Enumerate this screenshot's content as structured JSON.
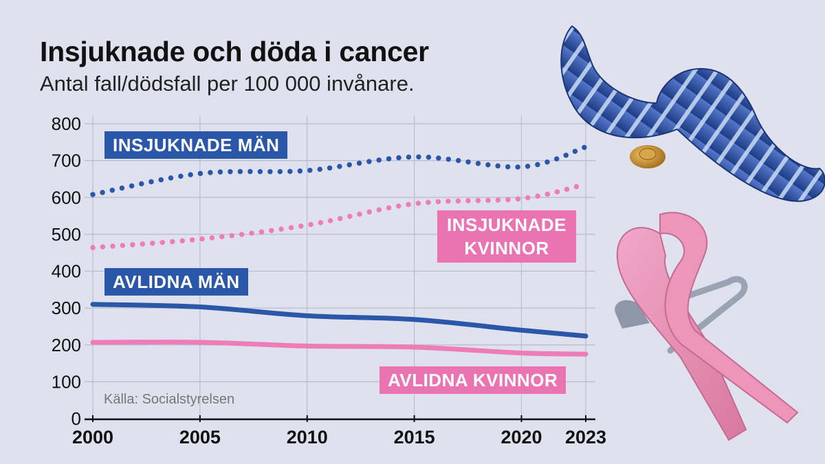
{
  "title": "Insjuknade och döda i cancer",
  "subtitle": "Antal fall/dödsfall per 100 000 invånare.",
  "source": "Källa: Socialstyrelsen",
  "colors": {
    "men": "#2a57a8",
    "women": "#ee7cb6",
    "women_label": "#ea74b1",
    "grid": "#b9bccb",
    "axis": "#111111"
  },
  "labels": {
    "insjuknade_man": "INSJUKNADE MÄN",
    "insjuknade_kvinnor_1": "INSJUKNADE",
    "insjuknade_kvinnor_2": "KVINNOR",
    "avlidna_man": "AVLIDNA MÄN",
    "avlidna_kvinnor": "AVLIDNA KVINNOR"
  },
  "chart_data": {
    "type": "line",
    "title": "Insjuknade och döda i cancer",
    "subtitle": "Antal fall/dödsfall per 100 000 invånare.",
    "ylim": [
      0,
      800
    ],
    "yticks": [
      0,
      100,
      200,
      300,
      400,
      500,
      600,
      700,
      800
    ],
    "xlim": [
      2000,
      2023
    ],
    "xticks": [
      2000,
      2005,
      2010,
      2015,
      2020,
      2023
    ],
    "grid": true,
    "series": [
      {
        "name": "INSJUKNADE MÄN",
        "style": "dotted",
        "color": "#2a57a8",
        "x": [
          2000,
          2005,
          2010,
          2015,
          2020,
          2023
        ],
        "values": [
          608,
          665,
          673,
          710,
          683,
          737
        ]
      },
      {
        "name": "INSJUKNADE KVINNOR",
        "style": "dotted",
        "color": "#ee7cb6",
        "x": [
          2000,
          2005,
          2010,
          2015,
          2020,
          2023
        ],
        "values": [
          464,
          487,
          525,
          583,
          597,
          636
        ]
      },
      {
        "name": "AVLIDNA MÄN",
        "style": "solid",
        "color": "#2a57a8",
        "x": [
          2000,
          2005,
          2010,
          2015,
          2020,
          2023
        ],
        "values": [
          310,
          303,
          279,
          269,
          240,
          224
        ]
      },
      {
        "name": "AVLIDNA KVINNOR",
        "style": "solid",
        "color": "#ee7cb6",
        "x": [
          2000,
          2005,
          2010,
          2015,
          2020,
          2023
        ],
        "values": [
          207,
          207,
          197,
          194,
          178,
          175
        ]
      }
    ]
  }
}
